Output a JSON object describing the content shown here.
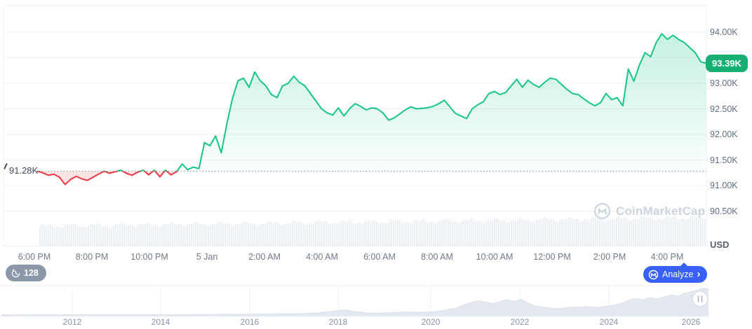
{
  "chart_data": {
    "type": "line",
    "unit_label": "USD",
    "current_value": 93.39,
    "current_price_label": "93.39K",
    "baseline_value": 91.28,
    "baseline_label": "91.28K",
    "y_axis": [
      {
        "value": 94.0,
        "label": "94.00K"
      },
      {
        "value": 93.0,
        "label": "93.00K"
      },
      {
        "value": 92.5,
        "label": "92.50K"
      },
      {
        "value": 92.0,
        "label": "92.00K"
      },
      {
        "value": 91.5,
        "label": "91.50K"
      },
      {
        "value": 91.0,
        "label": "91.00K"
      },
      {
        "value": 90.5,
        "label": "90.50K"
      }
    ],
    "gridline_values": [
      94.0,
      93.5,
      93.0,
      92.5,
      92.0,
      91.5,
      91.0,
      90.5
    ],
    "x_axis_labels": [
      "6:00 PM",
      "8:00 PM",
      "10:00 PM",
      "5 Jan",
      "2:00 AM",
      "4:00 AM",
      "6:00 AM",
      "8:00 AM",
      "10:00 AM",
      "12:00 PM",
      "2:00 PM",
      "4:00 PM"
    ],
    "prices_k_usd": [
      91.28,
      91.25,
      91.2,
      91.22,
      91.16,
      91.02,
      91.12,
      91.18,
      91.13,
      91.1,
      91.16,
      91.22,
      91.28,
      91.24,
      91.27,
      91.3,
      91.24,
      91.2,
      91.26,
      91.3,
      91.21,
      91.3,
      91.17,
      91.3,
      91.21,
      91.27,
      91.42,
      91.31,
      91.36,
      91.33,
      91.84,
      91.78,
      91.97,
      91.64,
      92.2,
      92.7,
      93.05,
      93.1,
      92.92,
      93.22,
      93.05,
      92.95,
      92.78,
      92.72,
      92.95,
      93.0,
      93.14,
      93.02,
      92.95,
      92.8,
      92.65,
      92.5,
      92.42,
      92.38,
      92.52,
      92.36,
      92.5,
      92.6,
      92.55,
      92.48,
      92.52,
      92.5,
      92.42,
      92.28,
      92.32,
      92.4,
      92.48,
      92.54,
      92.5,
      92.51,
      92.52,
      92.55,
      92.6,
      92.67,
      92.54,
      92.41,
      92.36,
      92.31,
      92.5,
      92.58,
      92.64,
      92.8,
      92.84,
      92.78,
      92.82,
      92.95,
      93.08,
      92.92,
      93.06,
      92.98,
      92.92,
      93.02,
      93.1,
      93.08,
      92.98,
      92.88,
      92.8,
      92.78,
      92.7,
      92.62,
      92.56,
      92.62,
      92.8,
      92.68,
      92.72,
      92.56,
      93.28,
      93.04,
      93.36,
      93.6,
      93.52,
      93.8,
      93.97,
      93.86,
      93.94,
      93.86,
      93.8,
      93.7,
      93.6,
      93.42,
      93.39
    ],
    "volume_profile": {
      "start_height": 28,
      "end_height": 40
    },
    "minimap": {
      "years": [
        "2012",
        "2014",
        "2016",
        "2018",
        "2020",
        "2022",
        "2024",
        "2026"
      ],
      "points": [
        [
          0.0,
          0.04
        ],
        [
          0.06,
          0.05
        ],
        [
          0.12,
          0.05
        ],
        [
          0.18,
          0.05
        ],
        [
          0.24,
          0.05
        ],
        [
          0.3,
          0.06
        ],
        [
          0.36,
          0.07
        ],
        [
          0.42,
          0.09
        ],
        [
          0.445,
          0.11
        ],
        [
          0.465,
          0.16
        ],
        [
          0.485,
          0.22
        ],
        [
          0.5,
          0.17
        ],
        [
          0.515,
          0.12
        ],
        [
          0.53,
          0.1
        ],
        [
          0.55,
          0.12
        ],
        [
          0.57,
          0.15
        ],
        [
          0.59,
          0.13
        ],
        [
          0.61,
          0.15
        ],
        [
          0.625,
          0.2
        ],
        [
          0.645,
          0.3
        ],
        [
          0.66,
          0.46
        ],
        [
          0.675,
          0.55
        ],
        [
          0.685,
          0.5
        ],
        [
          0.695,
          0.44
        ],
        [
          0.705,
          0.51
        ],
        [
          0.715,
          0.58
        ],
        [
          0.725,
          0.52
        ],
        [
          0.735,
          0.6
        ],
        [
          0.745,
          0.46
        ],
        [
          0.755,
          0.36
        ],
        [
          0.77,
          0.3
        ],
        [
          0.785,
          0.27
        ],
        [
          0.805,
          0.31
        ],
        [
          0.825,
          0.33
        ],
        [
          0.845,
          0.31
        ],
        [
          0.865,
          0.38
        ],
        [
          0.877,
          0.46
        ],
        [
          0.887,
          0.56
        ],
        [
          0.897,
          0.63
        ],
        [
          0.907,
          0.58
        ],
        [
          0.917,
          0.66
        ],
        [
          0.927,
          0.61
        ],
        [
          0.937,
          0.68
        ],
        [
          0.947,
          0.76
        ],
        [
          0.957,
          0.71
        ],
        [
          0.967,
          0.81
        ],
        [
          0.977,
          0.88
        ],
        [
          0.987,
          0.96
        ],
        [
          0.994,
          1.0
        ],
        [
          1.0,
          0.96
        ]
      ]
    }
  },
  "colors": {
    "up_green": "#16c784",
    "down_red": "#ea3943",
    "badge_green": "#18b072",
    "analyze_blue": "#3861fb",
    "dotted_baseline": "#9aa3b2",
    "gridline": "#eef0f3",
    "volume_bar": "#ebeef3",
    "minimap_fill": "#e4e9ef"
  },
  "watermark": {
    "text": "CoinMarketCap"
  },
  "footer": {
    "history_count": "128",
    "analyze_label": "Analyze",
    "analyze_chevron": "›"
  }
}
